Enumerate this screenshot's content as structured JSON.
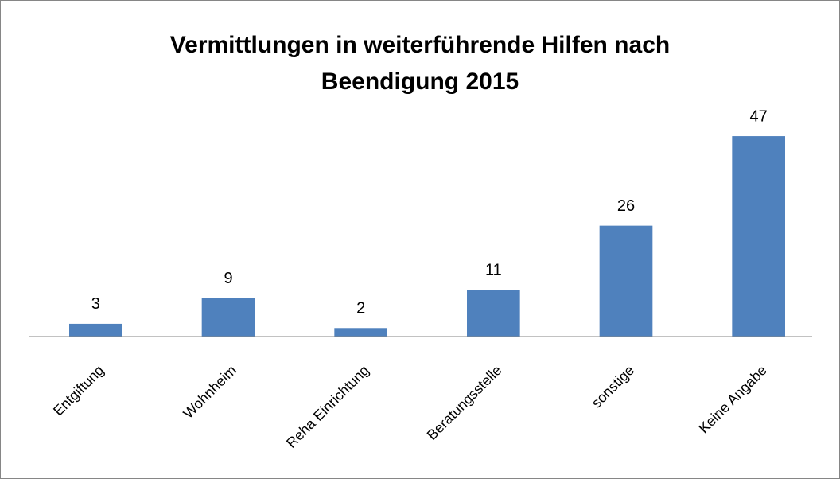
{
  "chart_data": {
    "type": "bar",
    "title": "Vermittlungen in weiterführende Hilfen nach Beendigung 2015",
    "categories": [
      "Entgiftung",
      "Wohnheim",
      "Reha Einrichtung",
      "Beratungsstelle",
      "sonstige",
      "Keine Angabe"
    ],
    "values": [
      3,
      9,
      2,
      11,
      26,
      47
    ],
    "color": "#4f81bd",
    "ylim": [
      0,
      50
    ]
  }
}
